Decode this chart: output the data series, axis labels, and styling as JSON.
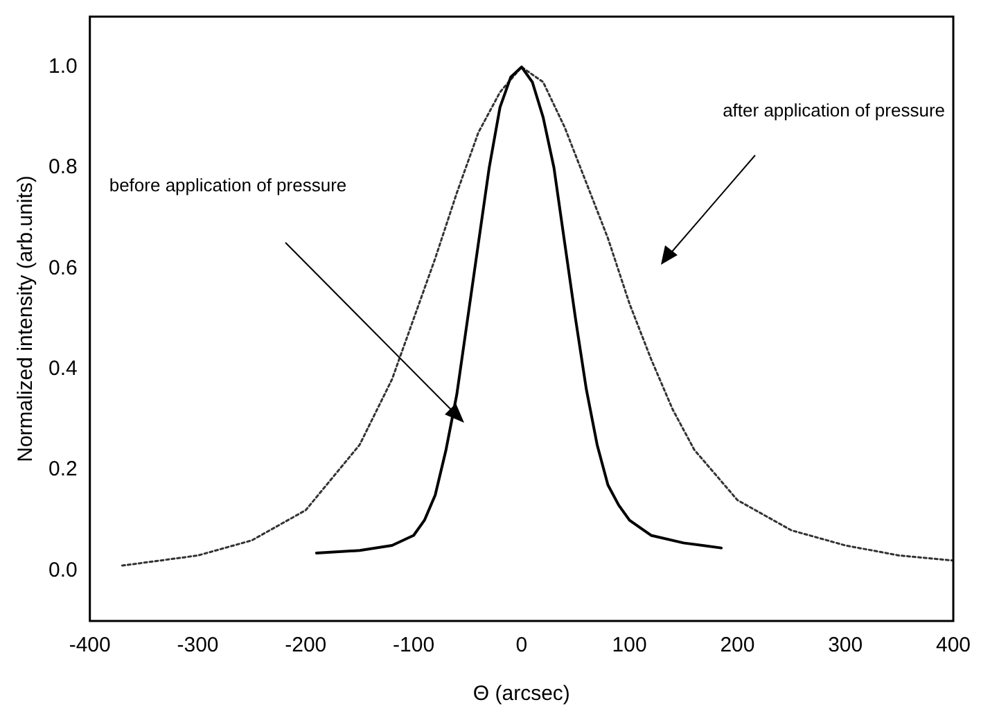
{
  "chart_data": {
    "type": "line",
    "xlabel": "Θ (arcsec)",
    "ylabel": "Normalized intensity (arb.units)",
    "xlim": [
      -400,
      400
    ],
    "xticks": [
      -400,
      -300,
      -200,
      -100,
      0,
      100,
      200,
      300,
      400
    ],
    "ylim": [
      -0.1,
      1.1
    ],
    "yticks": [
      {
        "value": 0,
        "label": "0.0"
      },
      {
        "value": 0.2,
        "label": "0.2"
      },
      {
        "value": 0.4,
        "label": "0.4"
      },
      {
        "value": 0.6,
        "label": "0.6"
      },
      {
        "value": 0.8,
        "label": "0.8"
      },
      {
        "value": 1,
        "label": "1.0"
      }
    ],
    "grid": false,
    "legend": false,
    "marker": "none",
    "series": [
      {
        "color": "#000000",
        "line_style": "solid",
        "x": [
          -190,
          -150,
          -120,
          -100,
          -90,
          -80,
          -70,
          -60,
          -50,
          -40,
          -30,
          -20,
          -10,
          0,
          10,
          20,
          30,
          40,
          50,
          60,
          70,
          80,
          90,
          100,
          120,
          150,
          185
        ],
        "values": [
          0.035,
          0.04,
          0.05,
          0.07,
          0.1,
          0.15,
          0.24,
          0.35,
          0.5,
          0.65,
          0.8,
          0.92,
          0.98,
          1.0,
          0.97,
          0.9,
          0.8,
          0.65,
          0.5,
          0.36,
          0.25,
          0.17,
          0.13,
          0.1,
          0.07,
          0.055,
          0.045
        ]
      },
      {
        "color": "#333333",
        "line_style": "dotted",
        "x": [
          -370,
          -300,
          -250,
          -200,
          -150,
          -120,
          -100,
          -80,
          -60,
          -40,
          -20,
          0,
          20,
          40,
          60,
          80,
          100,
          120,
          140,
          160,
          200,
          250,
          300,
          350,
          400
        ],
        "values": [
          0.01,
          0.03,
          0.06,
          0.12,
          0.25,
          0.38,
          0.5,
          0.62,
          0.75,
          0.87,
          0.95,
          1.0,
          0.97,
          0.88,
          0.77,
          0.66,
          0.53,
          0.42,
          0.32,
          0.24,
          0.14,
          0.08,
          0.05,
          0.03,
          0.02
        ]
      }
    ],
    "annotations": [
      "before application of pressure",
      "after application of pressure"
    ]
  }
}
